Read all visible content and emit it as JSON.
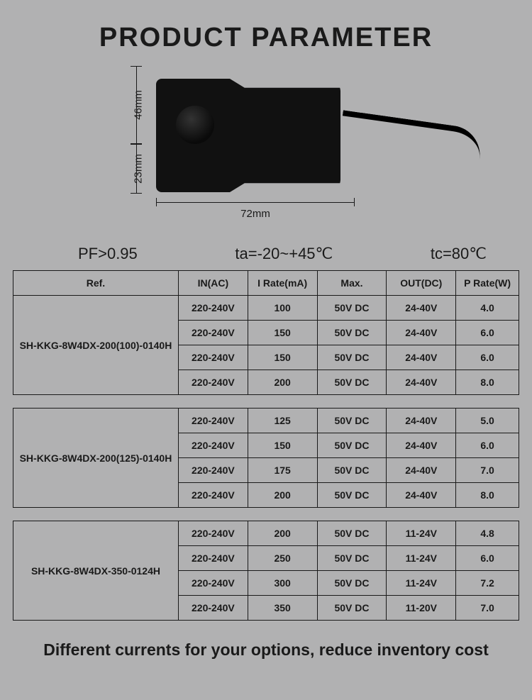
{
  "title": "PRODUCT PARAMETER",
  "dimensions": {
    "d46": "46mm",
    "d23": "23mm",
    "d72": "72mm"
  },
  "specs": {
    "pf": "PF>0.95",
    "ta": "ta=-20~+45℃",
    "tc": "tc=80℃"
  },
  "columns": {
    "ref": "Ref.",
    "in": "IN(AC)",
    "irate": "I Rate(mA)",
    "max": "Max.",
    "out": "OUT(DC)",
    "prate": "P Rate(W)"
  },
  "groups": [
    {
      "ref": "SH-KKG-8W4DX-200(100)-0140H",
      "rows": [
        {
          "in": "220-240V",
          "ir": "100",
          "max": "50V DC",
          "out": "24-40V",
          "pr": "4.0"
        },
        {
          "in": "220-240V",
          "ir": "150",
          "max": "50V DC",
          "out": "24-40V",
          "pr": "6.0"
        },
        {
          "in": "220-240V",
          "ir": "150",
          "max": "50V DC",
          "out": "24-40V",
          "pr": "6.0"
        },
        {
          "in": "220-240V",
          "ir": "200",
          "max": "50V DC",
          "out": "24-40V",
          "pr": "8.0"
        }
      ]
    },
    {
      "ref": "SH-KKG-8W4DX-200(125)-0140H",
      "rows": [
        {
          "in": "220-240V",
          "ir": "125",
          "max": "50V DC",
          "out": "24-40V",
          "pr": "5.0"
        },
        {
          "in": "220-240V",
          "ir": "150",
          "max": "50V DC",
          "out": "24-40V",
          "pr": "6.0"
        },
        {
          "in": "220-240V",
          "ir": "175",
          "max": "50V DC",
          "out": "24-40V",
          "pr": "7.0"
        },
        {
          "in": "220-240V",
          "ir": "200",
          "max": "50V DC",
          "out": "24-40V",
          "pr": "8.0"
        }
      ]
    },
    {
      "ref": "SH-KKG-8W4DX-350-0124H",
      "rows": [
        {
          "in": "220-240V",
          "ir": "200",
          "max": "50V DC",
          "out": "11-24V",
          "pr": "4.8"
        },
        {
          "in": "220-240V",
          "ir": "250",
          "max": "50V DC",
          "out": "11-24V",
          "pr": "6.0"
        },
        {
          "in": "220-240V",
          "ir": "300",
          "max": "50V DC",
          "out": "11-24V",
          "pr": "7.2"
        },
        {
          "in": "220-240V",
          "ir": "350",
          "max": "50V DC",
          "out": "11-20V",
          "pr": "7.0"
        }
      ]
    }
  ],
  "footer": "Different currents for your options, reduce inventory cost"
}
